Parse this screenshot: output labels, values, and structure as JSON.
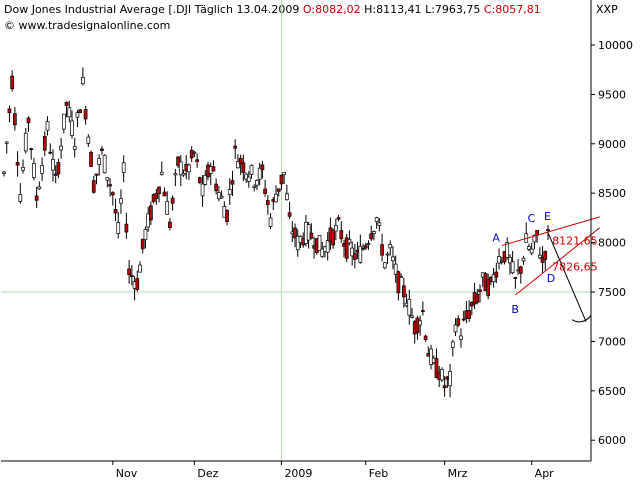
{
  "header": {
    "title": "Dow Jones Industrial Average [.DJI",
    "interval": "Täglich",
    "date": "13.04.2009",
    "open": "O:8082,02",
    "high": "H:8113,41",
    "low": "L:7963,75",
    "close": "C:8057,81",
    "website": "© www.tradesignalonline.com",
    "symbol": "XXP"
  },
  "colors": {
    "bull": "#ffffff",
    "bear": "#c00000",
    "wick": "#000000",
    "grid": "#b8d8b8",
    "trend": "#cc0000",
    "label_blue": "#0000cc"
  },
  "chart_data": {
    "type": "candlestick",
    "ylim": [
      5800,
      10300
    ],
    "yticks": [
      "6000",
      "6500",
      "7000",
      "7500",
      "8000",
      "8500",
      "9000",
      "9500",
      "10000"
    ],
    "xticks": [
      "Nov",
      "Dez",
      "2009",
      "Feb",
      "Mrz",
      "Apr"
    ],
    "xtick_index": [
      40,
      70,
      102,
      133,
      162,
      194
    ],
    "hgrid": 7500,
    "vgrid_index": 102,
    "segments": [
      [
        0,
        8700
      ],
      [
        3,
        9650
      ],
      [
        6,
        8500
      ],
      [
        9,
        9250
      ],
      [
        12,
        8450
      ],
      [
        16,
        9150
      ],
      [
        19,
        8600
      ],
      [
        23,
        9400
      ],
      [
        26,
        9050
      ],
      [
        29,
        9600
      ],
      [
        33,
        8600
      ],
      [
        36,
        8900
      ],
      [
        40,
        8500
      ],
      [
        42,
        8100
      ],
      [
        44,
        8700
      ],
      [
        46,
        7700
      ],
      [
        49,
        7600
      ],
      [
        52,
        8100
      ],
      [
        55,
        8400
      ],
      [
        58,
        8700
      ],
      [
        61,
        8200
      ],
      [
        64,
        8800
      ],
      [
        67,
        8700
      ],
      [
        70,
        8900
      ],
      [
        73,
        8500
      ],
      [
        76,
        8800
      ],
      [
        79,
        8500
      ],
      [
        82,
        8300
      ],
      [
        85,
        8900
      ],
      [
        89,
        8750
      ],
      [
        92,
        8650
      ],
      [
        95,
        8700
      ],
      [
        98,
        8250
      ],
      [
        100,
        8500
      ],
      [
        103,
        8700
      ],
      [
        105,
        8200
      ],
      [
        108,
        8000
      ],
      [
        111,
        8100
      ],
      [
        114,
        8050
      ],
      [
        117,
        7920
      ],
      [
        120,
        8050
      ],
      [
        123,
        8150
      ],
      [
        126,
        7950
      ],
      [
        130,
        7850
      ],
      [
        133,
        8000
      ],
      [
        137,
        8250
      ],
      [
        140,
        7800
      ],
      [
        142,
        7900
      ],
      [
        145,
        7600
      ],
      [
        148,
        7450
      ],
      [
        151,
        7150
      ],
      [
        154,
        7300
      ],
      [
        156,
        6900
      ],
      [
        158,
        6750
      ],
      [
        160,
        6700
      ],
      [
        162,
        6550
      ],
      [
        164,
        6600
      ],
      [
        166,
        7200
      ],
      [
        168,
        7100
      ],
      [
        171,
        7300
      ],
      [
        174,
        7450
      ],
      [
        176,
        7600
      ],
      [
        179,
        7550
      ],
      [
        182,
        7850
      ],
      [
        185,
        7900
      ],
      [
        188,
        7600
      ],
      [
        190,
        7750
      ],
      [
        192,
        8000
      ],
      [
        194,
        7900
      ],
      [
        196,
        8050
      ],
      [
        198,
        7800
      ],
      [
        200,
        8050
      ]
    ],
    "candles_count": 201,
    "annotations": {
      "labels": [
        {
          "text": "A",
          "i": 181,
          "v": 8050
        },
        {
          "text": "B",
          "i": 188,
          "v": 7330
        },
        {
          "text": "C",
          "i": 194,
          "v": 8250
        },
        {
          "text": "D",
          "i": 201,
          "v": 7640
        },
        {
          "text": "E",
          "i": 200,
          "v": 8270
        }
      ],
      "prices": [
        {
          "text": "8121,65",
          "i": 203,
          "v": 8020
        },
        {
          "text": "7826,65",
          "i": 203,
          "v": 7760
        }
      ],
      "upper_trend": {
        "i1": 183,
        "v1": 7970,
        "i2": 219,
        "v2": 8260
      },
      "lower_trend": {
        "i1": 188,
        "v1": 7470,
        "i2": 219,
        "v2": 8150
      },
      "forecast": {
        "i1": 200,
        "v1": 8100,
        "i2": 214,
        "v2": 7200
      }
    }
  }
}
